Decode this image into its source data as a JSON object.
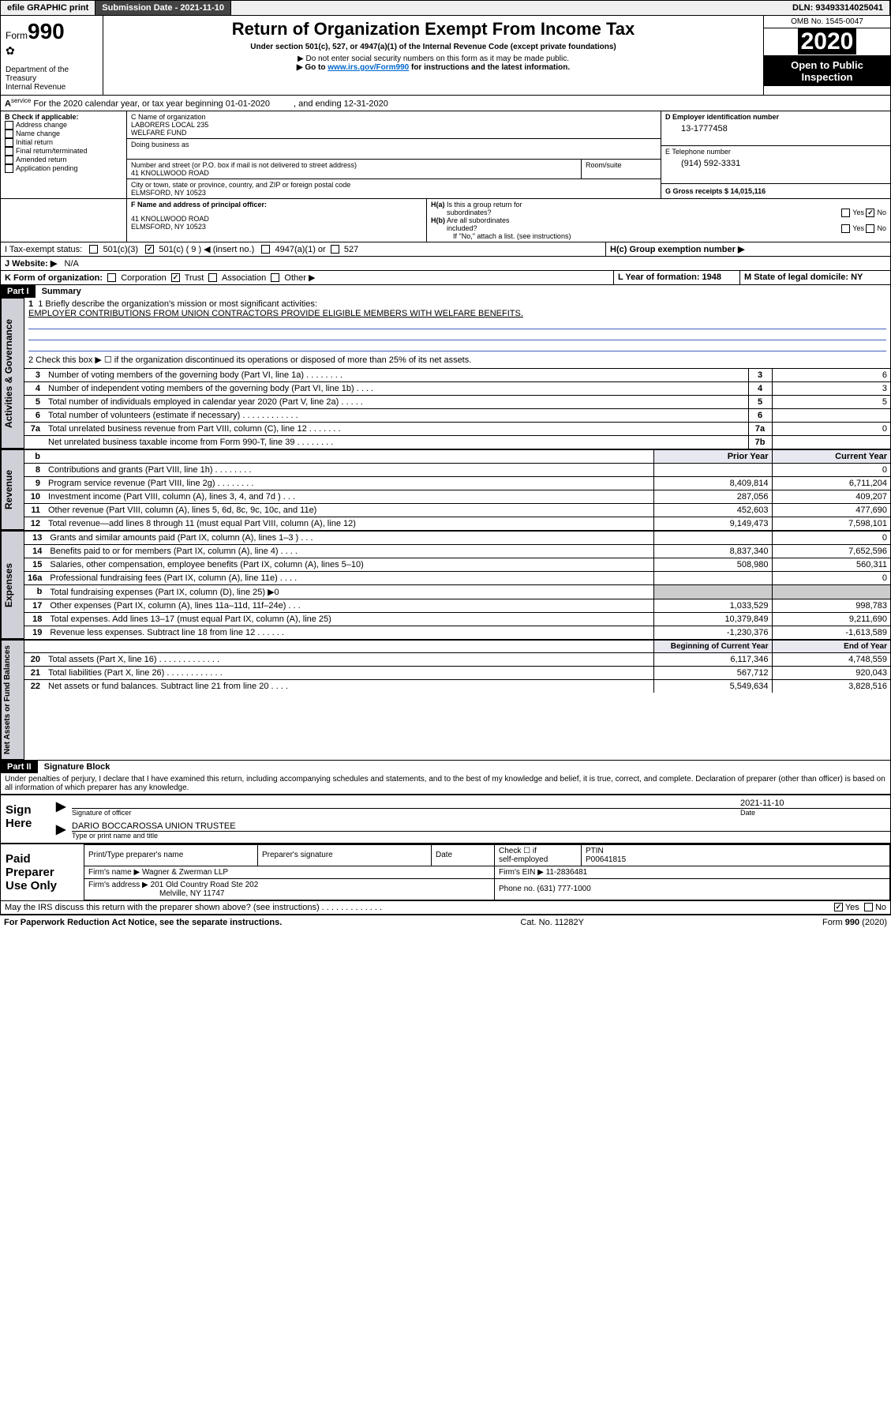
{
  "topbar": {
    "efile": "efile GRAPHIC print",
    "submission_label": "Submission Date - 2021-11-10",
    "dln": "DLN: 93493314025041"
  },
  "header": {
    "form_word": "Form",
    "form_num": "990",
    "dept": "Department of the Treasury",
    "irs": "Internal Revenue",
    "title": "Return of Organization Exempt From Income Tax",
    "subtitle": "Under section 501(c), 527, or 4947(a)(1) of the Internal Revenue Code (except private foundations)",
    "note1": "▶ Do not enter social security numbers on this form as it may be made public.",
    "note2_pre": "▶ Go to ",
    "note2_link": "www.irs.gov/Form990",
    "note2_post": " for instructions and the latest information.",
    "omb": "OMB No. 1545-0047",
    "year": "2020",
    "open": "Open to Public Inspection"
  },
  "period": {
    "text_a": "For the 2020 calendar year, or tax year beginning 01-01-2020",
    "text_b": ", and ending 12-31-2020"
  },
  "boxB": {
    "label": "B Check if applicable:",
    "addr": "Address change",
    "name": "Name change",
    "initial": "Initial return",
    "final": "Final return/terminated",
    "amended": "Amended return",
    "app": "Application pending"
  },
  "boxC": {
    "label": "C Name of organization",
    "name1": "LABORERS LOCAL 235",
    "name2": "WELFARE FUND",
    "dba_label": "Doing business as",
    "street_label": "Number and street (or P.O. box if mail is not delivered to street address)",
    "room_label": "Room/suite",
    "street": "41 KNOLLWOOD ROAD",
    "city_label": "City or town, state or province, country, and ZIP or foreign postal code",
    "city": "ELMSFORD, NY  10523"
  },
  "boxD": {
    "label": "D Employer identification number",
    "ein": "13-1777458"
  },
  "boxE": {
    "label": "E Telephone number",
    "phone": "(914) 592-3331"
  },
  "boxG": {
    "label": "G Gross receipts $ 14,015,116"
  },
  "boxF": {
    "label": "F  Name and address of principal officer:",
    "addr1": "41 KNOLLWOOD ROAD",
    "addr2": "ELMSFORD, NY  10523"
  },
  "boxH": {
    "a_label": "H(a)  Is this a group return for subordinates?",
    "yes": "Yes",
    "no": "No",
    "b_label": "H(b)  Are all subordinates included?",
    "b_note": "If \"No,\" attach a list. (see instructions)",
    "c_label": "H(c)  Group exemption number ▶"
  },
  "boxI": {
    "label": "I   Tax-exempt status:",
    "c3": "501(c)(3)",
    "c": "501(c) ( 9 ) ◀ (insert no.)",
    "a1": "4947(a)(1) or",
    "s527": "527"
  },
  "boxJ": {
    "label": "J   Website: ▶",
    "val": "N/A"
  },
  "boxK": {
    "label": "K Form of organization:",
    "corp": "Corporation",
    "trust": "Trust",
    "assoc": "Association",
    "other": "Other ▶"
  },
  "boxL": {
    "label": "L Year of formation: 1948"
  },
  "boxM": {
    "label": "M State of legal domicile: NY"
  },
  "partI": {
    "header": "Part I",
    "title": "Summary",
    "line1_label": "1  Briefly describe the organization's mission or most significant activities:",
    "line1_text": "EMPLOYER CONTRIBUTIONS FROM UNION CONTRACTORS PROVIDE ELIGIBLE MEMBERS WITH WELFARE BENEFITS.",
    "line2": "2   Check this box ▶ ☐  if the organization discontinued its operations or disposed of more than 25% of its net assets.",
    "rows_ag": [
      {
        "n": "3",
        "d": "Number of voting members of the governing body (Part VI, line 1a)   .    .    .    .    .    .    .    .",
        "k": "3",
        "v": "6"
      },
      {
        "n": "4",
        "d": "Number of independent voting members of the governing body (Part VI, line 1b)   .    .    .    .",
        "k": "4",
        "v": "3"
      },
      {
        "n": "5",
        "d": "Total number of individuals employed in calendar year 2020 (Part V, line 2a)   .    .    .    .    .",
        "k": "5",
        "v": "5"
      },
      {
        "n": "6",
        "d": "Total number of volunteers (estimate if necessary)   .    .    .    .    .    .    .    .    .    .    .    .",
        "k": "6",
        "v": ""
      },
      {
        "n": "7a",
        "d": "Total unrelated business revenue from Part VIII, column (C), line 12   .    .    .    .    .    .    .",
        "k": "7a",
        "v": "0"
      },
      {
        "n": "",
        "d": "Net unrelated business taxable income from Form 990-T, line 39   .    .    .    .    .    .    .    .",
        "k": "7b",
        "v": ""
      }
    ],
    "prior_hdr": "Prior Year",
    "curr_hdr": "Current Year",
    "rows_rev": [
      {
        "n": "8",
        "d": "Contributions and grants (Part VIII, line 1h)   .    .    .    .    .    .    .    .",
        "p": "",
        "c": "0"
      },
      {
        "n": "9",
        "d": "Program service revenue (Part VIII, line 2g)   .    .    .    .    .    .    .    .",
        "p": "8,409,814",
        "c": "6,711,204"
      },
      {
        "n": "10",
        "d": "Investment income (Part VIII, column (A), lines 3, 4, and 7d )   .    .    .",
        "p": "287,056",
        "c": "409,207"
      },
      {
        "n": "11",
        "d": "Other revenue (Part VIII, column (A), lines 5, 6d, 8c, 9c, 10c, and 11e)",
        "p": "452,603",
        "c": "477,690"
      },
      {
        "n": "12",
        "d": "Total revenue—add lines 8 through 11 (must equal Part VIII, column (A), line 12)",
        "p": "9,149,473",
        "c": "7,598,101"
      }
    ],
    "rows_exp": [
      {
        "n": "13",
        "d": "Grants and similar amounts paid (Part IX, column (A), lines 1–3 )   .    .    .",
        "p": "",
        "c": "0"
      },
      {
        "n": "14",
        "d": "Benefits paid to or for members (Part IX, column (A), line 4)   .    .    .    .",
        "p": "8,837,340",
        "c": "7,652,596"
      },
      {
        "n": "15",
        "d": "Salaries, other compensation, employee benefits (Part IX, column (A), lines 5–10)",
        "p": "508,980",
        "c": "560,311"
      },
      {
        "n": "16a",
        "d": "Professional fundraising fees (Part IX, column (A), line 11e)   .    .    .    .",
        "p": "",
        "c": "0"
      },
      {
        "n": "b",
        "d": "Total fundraising expenses (Part IX, column (D), line 25) ▶0",
        "p": "__shade__",
        "c": "__shade__"
      },
      {
        "n": "17",
        "d": "Other expenses (Part IX, column (A), lines 11a–11d, 11f–24e)   .    .    .",
        "p": "1,033,529",
        "c": "998,783"
      },
      {
        "n": "18",
        "d": "Total expenses. Add lines 13–17 (must equal Part IX, column (A), line 25)",
        "p": "10,379,849",
        "c": "9,211,690"
      },
      {
        "n": "19",
        "d": "Revenue less expenses. Subtract line 18 from line 12   .    .    .    .    .    .",
        "p": "-1,230,376",
        "c": "-1,613,589"
      }
    ],
    "bcy_hdr": "Beginning of Current Year",
    "eoy_hdr": "End of Year",
    "rows_na": [
      {
        "n": "20",
        "d": "Total assets (Part X, line 16)   .    .    .    .    .    .    .    .    .    .    .    .    .",
        "p": "6,117,346",
        "c": "4,748,559"
      },
      {
        "n": "21",
        "d": "Total liabilities (Part X, line 26)   .    .    .    .    .    .    .    .    .    .    .    .",
        "p": "567,712",
        "c": "920,043"
      },
      {
        "n": "22",
        "d": "Net assets or fund balances. Subtract line 21 from line 20   .    .    .    .",
        "p": "5,549,634",
        "c": "3,828,516"
      }
    ]
  },
  "vtabs": {
    "ag": "Activities & Governance",
    "rev": "Revenue",
    "exp": "Expenses",
    "na": "Net Assets or Fund Balances"
  },
  "partII": {
    "header": "Part II",
    "title": "Signature Block",
    "perjury": "Under penalties of perjury, I declare that I have examined this return, including accompanying schedules and statements, and to the best of my knowledge and belief, it is true, correct, and complete. Declaration of preparer (other than officer) is based on all information of which preparer has any knowledge."
  },
  "sign": {
    "here": "Sign Here",
    "sig_label": "Signature of officer",
    "date_label": "Date",
    "date": "2021-11-10",
    "name": "DARIO BOCCAROSSA  UNION TRUSTEE",
    "name_label": "Type or print name and title"
  },
  "paid": {
    "label": "Paid Preparer Use Only",
    "h1": "Print/Type preparer's name",
    "h2": "Preparer's signature",
    "h3": "Date",
    "h4a": "Check ☐ if",
    "h4b": "self-employed",
    "h5": "PTIN",
    "ptin": "P00641815",
    "firm_label": "Firm's name    ▶ Wagner & Zwerman LLP",
    "firm_ein": "Firm's EIN ▶ 11-2836481",
    "addr_label": "Firm's address ▶ 201 Old Country Road Ste 202",
    "addr2": "Melville, NY  11747",
    "phone": "Phone no. (631) 777-1000"
  },
  "discuss": {
    "q": "May the IRS discuss this return with the preparer shown above? (see instructions)   .    .    .    .    .    .    .    .    .    .    .    .    .",
    "yes": "Yes",
    "no": "No"
  },
  "footer": {
    "pra": "For Paperwork Reduction Act Notice, see the separate instructions.",
    "cat": "Cat. No. 11282Y",
    "form": "Form 990 (2020)"
  }
}
